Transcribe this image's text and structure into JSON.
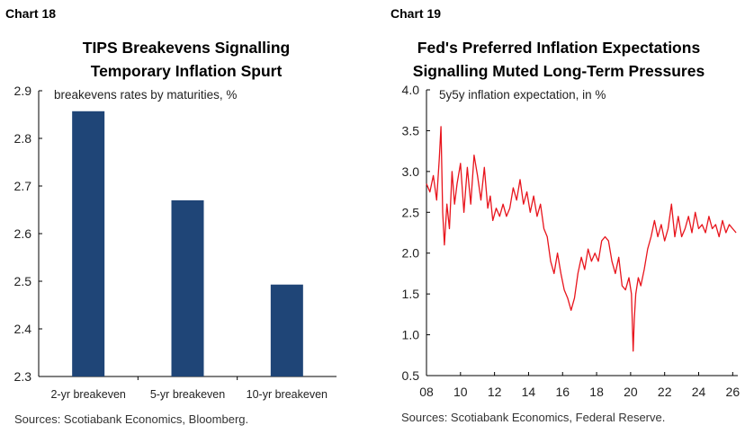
{
  "colors": {
    "bar": "#1f4577",
    "line": "#e8141c",
    "axis": "#000000"
  },
  "chart18": {
    "label": "Chart 18",
    "title_line1": "TIPS Breakevens Signalling",
    "title_line2": "Temporary Inflation Spurt",
    "source": "Sources: Scotiabank Economics, Bloomberg."
  },
  "chart19": {
    "label": "Chart 19",
    "title_line1": "Fed's Preferred Inflation Expectations",
    "title_line2": "Signalling Muted Long-Term Pressures",
    "source": "Sources: Scotiabank Economics, Federal Reserve."
  },
  "chart_data": [
    {
      "type": "bar",
      "title": "TIPS Breakevens Signalling Temporary Inflation Spurt",
      "annotation": "breakevens rates by maturities, %",
      "categories": [
        "2-yr breakeven",
        "5-yr breakeven",
        "10-yr breakeven"
      ],
      "values": [
        2.857,
        2.67,
        2.493
      ],
      "ylim": [
        2.3,
        2.9
      ],
      "yticks": [
        "2.3",
        "2.4",
        "2.5",
        "2.6",
        "2.7",
        "2.8",
        "2.9"
      ],
      "grid": false,
      "legend": "none"
    },
    {
      "type": "line",
      "title": "Fed's Preferred Inflation Expectations Signalling Muted Long-Term Pressures",
      "annotation": "5y5y inflation expectation, in %",
      "xlim": [
        2008,
        2026.3
      ],
      "ylim": [
        0.5,
        4.0
      ],
      "xticks": [
        "08",
        "10",
        "12",
        "14",
        "16",
        "18",
        "20",
        "22",
        "24",
        "26"
      ],
      "yticks": [
        "0.5",
        "1.0",
        "1.5",
        "2.0",
        "2.5",
        "3.0",
        "3.5",
        "4.0"
      ],
      "grid": false,
      "legend": "none",
      "series": [
        {
          "x": [
            2008.0,
            2008.2,
            2008.4,
            2008.6,
            2008.75,
            2008.85,
            2008.95,
            2009.05,
            2009.2,
            2009.35,
            2009.5,
            2009.65,
            2009.8,
            2010.0,
            2010.2,
            2010.4,
            2010.6,
            2010.8,
            2011.0,
            2011.2,
            2011.4,
            2011.6,
            2011.75,
            2011.9,
            2012.1,
            2012.3,
            2012.5,
            2012.7,
            2012.9,
            2013.1,
            2013.3,
            2013.5,
            2013.7,
            2013.9,
            2014.1,
            2014.3,
            2014.5,
            2014.7,
            2014.9,
            2015.1,
            2015.3,
            2015.5,
            2015.7,
            2015.9,
            2016.1,
            2016.3,
            2016.5,
            2016.7,
            2016.9,
            2017.1,
            2017.3,
            2017.5,
            2017.7,
            2017.9,
            2018.1,
            2018.3,
            2018.5,
            2018.7,
            2018.9,
            2019.1,
            2019.3,
            2019.5,
            2019.7,
            2019.9,
            2020.05,
            2020.15,
            2020.22,
            2020.3,
            2020.45,
            2020.6,
            2020.8,
            2021.0,
            2021.2,
            2021.4,
            2021.6,
            2021.8,
            2022.0,
            2022.2,
            2022.4,
            2022.6,
            2022.8,
            2023.0,
            2023.2,
            2023.4,
            2023.6,
            2023.8,
            2024.0,
            2024.2,
            2024.4,
            2024.6,
            2024.8,
            2025.0,
            2025.2,
            2025.4,
            2025.6,
            2025.8,
            2026.0,
            2026.2
          ],
          "y": [
            2.85,
            2.75,
            2.95,
            2.65,
            3.15,
            3.55,
            2.5,
            2.1,
            2.6,
            2.3,
            3.0,
            2.6,
            2.85,
            3.1,
            2.5,
            3.05,
            2.6,
            3.2,
            2.95,
            2.65,
            3.05,
            2.55,
            2.7,
            2.4,
            2.55,
            2.45,
            2.6,
            2.45,
            2.55,
            2.8,
            2.65,
            2.9,
            2.6,
            2.75,
            2.5,
            2.7,
            2.45,
            2.6,
            2.3,
            2.2,
            1.9,
            1.75,
            2.0,
            1.75,
            1.55,
            1.45,
            1.3,
            1.45,
            1.75,
            1.95,
            1.8,
            2.05,
            1.9,
            2.0,
            1.9,
            2.15,
            2.2,
            2.15,
            1.9,
            1.75,
            1.95,
            1.6,
            1.55,
            1.7,
            1.5,
            0.8,
            1.2,
            1.5,
            1.7,
            1.6,
            1.8,
            2.05,
            2.2,
            2.4,
            2.2,
            2.35,
            2.15,
            2.3,
            2.6,
            2.2,
            2.45,
            2.2,
            2.3,
            2.45,
            2.25,
            2.5,
            2.3,
            2.35,
            2.25,
            2.45,
            2.3,
            2.35,
            2.2,
            2.4,
            2.25,
            2.35,
            2.3,
            2.25
          ]
        }
      ]
    }
  ]
}
